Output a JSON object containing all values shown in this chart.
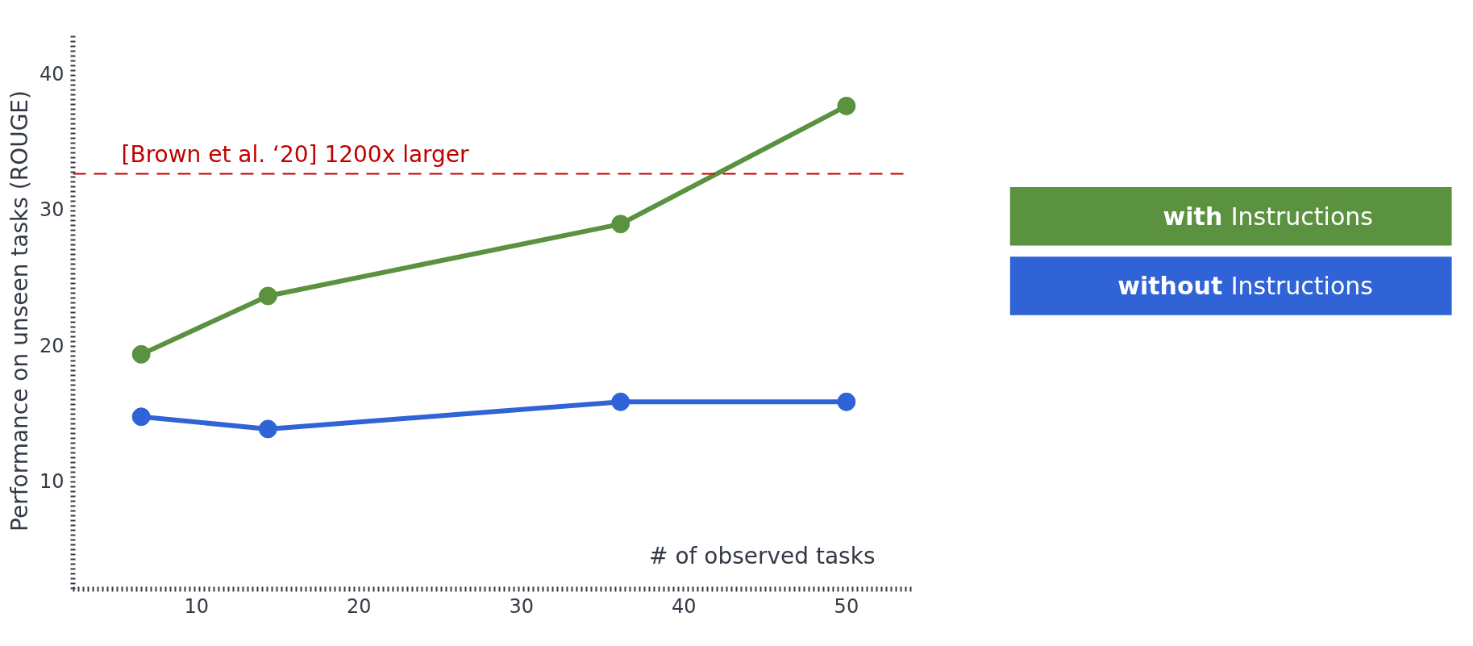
{
  "chart_data": {
    "type": "line",
    "xlabel": "# of observed tasks",
    "ylabel": "Performance on unseen tasks (ROUGE)",
    "xlim": [
      2.4,
      54
    ],
    "ylim": [
      2,
      43
    ],
    "xticks": [
      10,
      20,
      30,
      40,
      50
    ],
    "yticks": [
      10,
      20,
      30,
      40
    ],
    "marker": "circle",
    "line_style": "solid",
    "grid": false,
    "legend": "right",
    "series": [
      {
        "name": "with Instructions",
        "color": "#5b9240",
        "x": [
          6.6,
          14.4,
          36.1,
          50
        ],
        "values": [
          19.3,
          23.6,
          28.9,
          37.6
        ]
      },
      {
        "name": "without Instructions",
        "color": "#2f63d6",
        "x": [
          6.6,
          14.4,
          36.1,
          50
        ],
        "values": [
          14.7,
          13.8,
          15.8,
          15.8
        ]
      }
    ],
    "ref_lines": [
      {
        "axis": "y",
        "value": 32.6,
        "label": "[Brown et al. ‘20]  1200x larger",
        "color": "#c00000",
        "line_style": "dashed"
      }
    ]
  }
}
